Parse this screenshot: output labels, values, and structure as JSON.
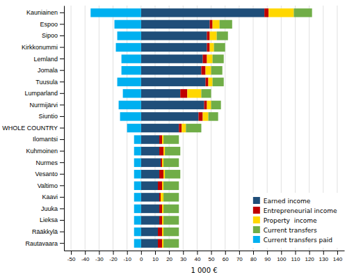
{
  "chart_data": {
    "type": "bar",
    "orientation": "horizontal",
    "stacked": true,
    "categories": [
      "Kauniainen",
      "Espoo",
      "Sipoo",
      "Kirkkonummi",
      "Lemland",
      "Jomala",
      "Tuusula",
      "Lumparland",
      "Nurmijärvi",
      "Siuntio",
      "WHOLE COUNTRY",
      "Ilomantsi",
      "Kuhmoinen",
      "Nurmes",
      "Vesanto",
      "Valtimo",
      "Kaavi",
      "Juuka",
      "Lieksa",
      "Rääkkylä",
      "Rautavaara"
    ],
    "series": [
      {
        "name": "Earned income",
        "color": "#1F4E79",
        "values": [
          88,
          49,
          47,
          47,
          44,
          43,
          46,
          28,
          45,
          41,
          27,
          13,
          13,
          14,
          13,
          12,
          13,
          13,
          13,
          12,
          12
        ]
      },
      {
        "name": "Entrepreneurial income",
        "color": "#C00000",
        "values": [
          3,
          2,
          2,
          2,
          3,
          3,
          2,
          5,
          2,
          3,
          2,
          2,
          3,
          1,
          3,
          3,
          1,
          2,
          2,
          3,
          3
        ]
      },
      {
        "name": "Property  income",
        "color": "#FFD700",
        "values": [
          18,
          5,
          5,
          3,
          4,
          4,
          3,
          10,
          3,
          4,
          3,
          1,
          1,
          1,
          1,
          1,
          2,
          1,
          1,
          1,
          1
        ]
      },
      {
        "name": "Current transfers",
        "color": "#70AD47",
        "values": [
          13,
          9,
          8,
          8,
          8,
          8,
          8,
          7,
          7,
          7,
          11,
          11,
          11,
          11,
          11,
          11,
          11,
          11,
          11,
          11,
          11
        ]
      },
      {
        "name": "Current transfers paid",
        "color": "#00B0F0",
        "values": [
          -36,
          -19,
          -17,
          -18,
          -14,
          -14,
          -17,
          -13,
          -16,
          -15,
          -10,
          -5,
          -5,
          -5,
          -5,
          -5,
          -5,
          -5,
          -5,
          -5,
          -5
        ]
      }
    ],
    "xlabel": "1 000 €",
    "xlim": [
      -55,
      145
    ],
    "xticks": [
      -50,
      -40,
      -30,
      -20,
      -10,
      0,
      10,
      20,
      30,
      40,
      50,
      60,
      70,
      80,
      90,
      100,
      110,
      120,
      130,
      140
    ],
    "grid": true,
    "legend": "lower right"
  }
}
